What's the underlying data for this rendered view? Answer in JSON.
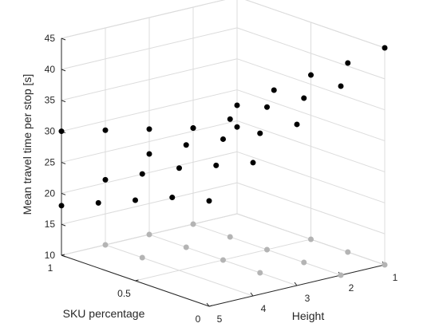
{
  "chart_data": {
    "type": "scatter",
    "title": "",
    "xlabel": "SKU percentage",
    "ylabel": "Height",
    "zlabel": "Mean travel time per stop [s]",
    "x_ticks": [
      "0",
      "0.5",
      "1"
    ],
    "y_ticks": [
      "1",
      "2",
      "3",
      "4",
      "5"
    ],
    "z_ticks": [
      "10",
      "15",
      "20",
      "25",
      "30",
      "35",
      "40",
      "45"
    ],
    "xlim": [
      0,
      1
    ],
    "ylim": [
      1,
      5
    ],
    "zlim": [
      10,
      45
    ],
    "grid": true,
    "series": [
      {
        "points": [
          {
            "x": 1.0,
            "y": 1,
            "z": 27.5
          },
          {
            "x": 1.0,
            "y": 2,
            "z": 25.5
          },
          {
            "x": 1.0,
            "y": 3,
            "z": 23.0
          },
          {
            "x": 1.0,
            "y": 4,
            "z": 20.5
          },
          {
            "x": 1.0,
            "y": 5,
            "z": 18.0
          },
          {
            "x": 0.75,
            "y": 1,
            "z": 32.0
          },
          {
            "x": 0.75,
            "y": 2,
            "z": 29.0
          },
          {
            "x": 0.75,
            "y": 3,
            "z": 26.5
          },
          {
            "x": 0.75,
            "y": 4,
            "z": 23.5
          },
          {
            "x": 0.75,
            "y": 5,
            "z": 20.5
          },
          {
            "x": 0.5,
            "y": 1,
            "z": 36.5
          },
          {
            "x": 0.5,
            "y": 2,
            "z": 33.0
          },
          {
            "x": 0.5,
            "y": 3,
            "z": 29.5
          },
          {
            "x": 0.5,
            "y": 4,
            "z": 26.5
          },
          {
            "x": 0.5,
            "y": 5,
            "z": 23.0
          },
          {
            "x": 0.25,
            "y": 1,
            "z": 40.5
          },
          {
            "x": 0.25,
            "y": 2,
            "z": 36.5
          },
          {
            "x": 0.25,
            "y": 3,
            "z": 32.5
          },
          {
            "x": 0.25,
            "y": 4,
            "z": 29.0
          },
          {
            "x": 0.25,
            "y": 5,
            "z": 25.5
          },
          {
            "x": 0.0,
            "y": 1,
            "z": 45.0
          },
          {
            "x": 0.0,
            "y": 2,
            "z": 40.5
          },
          {
            "x": 0.0,
            "y": 3,
            "z": 36.0
          },
          {
            "x": 0.0,
            "y": 4,
            "z": 31.5
          },
          {
            "x": 0.0,
            "y": 5,
            "z": 27.0
          },
          {
            "x": 1.0,
            "y": 5,
            "z": 30.0
          },
          {
            "x": 1.0,
            "y": 4,
            "z": 28.5
          },
          {
            "x": 1.0,
            "y": 3,
            "z": 27.0
          },
          {
            "x": 1.0,
            "y": 2,
            "z": 25.5
          },
          {
            "x": 1.0,
            "y": 1,
            "z": 24.0
          }
        ],
        "color": "#000000"
      },
      {
        "points": [
          {
            "x": 1.0,
            "y": 2,
            "z": 10
          },
          {
            "x": 1.0,
            "y": 3,
            "z": 10
          },
          {
            "x": 1.0,
            "y": 4,
            "z": 10
          },
          {
            "x": 0.75,
            "y": 2,
            "z": 10
          },
          {
            "x": 0.75,
            "y": 3,
            "z": 10
          },
          {
            "x": 0.75,
            "y": 4,
            "z": 10
          },
          {
            "x": 0.5,
            "y": 1,
            "z": 10
          },
          {
            "x": 0.5,
            "y": 2,
            "z": 10
          },
          {
            "x": 0.5,
            "y": 3,
            "z": 10
          },
          {
            "x": 0.25,
            "y": 1,
            "z": 10
          },
          {
            "x": 0.25,
            "y": 2,
            "z": 10
          },
          {
            "x": 0.25,
            "y": 3,
            "z": 10
          },
          {
            "x": 0.0,
            "y": 1,
            "z": 10
          },
          {
            "x": 0.0,
            "y": 2,
            "z": 10
          }
        ],
        "color": "#b4b4b4"
      }
    ]
  }
}
